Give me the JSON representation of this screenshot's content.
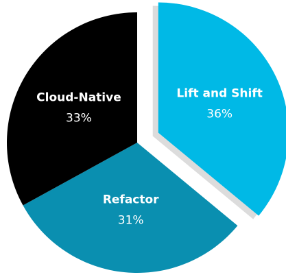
{
  "chart_data": {
    "type": "pie",
    "categories": [
      "Lift and Shift",
      "Refactor",
      "Cloud-Native"
    ],
    "values": [
      36,
      31,
      33
    ],
    "value_labels": [
      "36%",
      "31%",
      "33%"
    ],
    "colors": [
      "#00b9e6",
      "#0a8fb0",
      "#000000"
    ],
    "exploded": [
      true,
      false,
      false
    ]
  }
}
